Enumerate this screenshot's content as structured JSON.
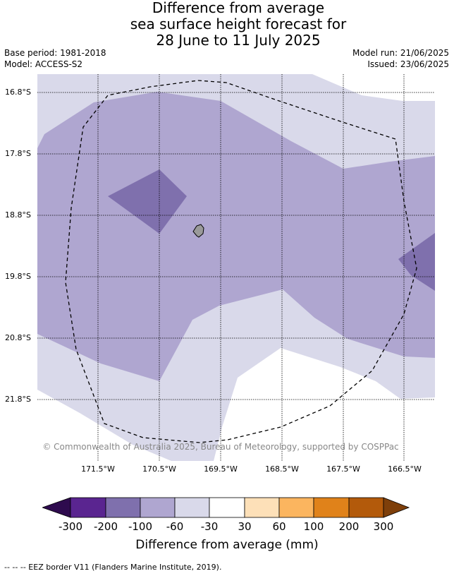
{
  "title": {
    "line1": "Difference from average",
    "line2": "sea surface height forecast for",
    "line3": "28 June to 11 July 2025"
  },
  "meta": {
    "base_period": "Base period: 1981-2018",
    "model": "Model: ACCESS-S2",
    "model_run": "Model run: 21/06/2025",
    "issued": "Issued: 23/06/2025"
  },
  "axes": {
    "latitudes": [
      "16.8°S",
      "17.8°S",
      "18.8°S",
      "19.8°S",
      "20.8°S",
      "21.8°S"
    ],
    "longitudes": [
      "171.5°W",
      "170.5°W",
      "169.5°W",
      "168.5°W",
      "167.5°W",
      "166.5°W"
    ]
  },
  "copyright": "© Commonwealth of Australia 2025, Bureau of Meteorology, supported by COSPPac",
  "colorbar": {
    "ticks": [
      "-300",
      "-200",
      "-100",
      "-60",
      "-30",
      "30",
      "60",
      "100",
      "200",
      "300"
    ],
    "colors": [
      "#2e0b4e",
      "#5a2590",
      "#7f70ad",
      "#afa6d0",
      "#d9d9ea",
      "#ffffff",
      "#fde0b8",
      "#fbb55f",
      "#e0821a",
      "#b35a0b",
      "#7e3f0a"
    ],
    "label": "Difference from average (mm)"
  },
  "legend": {
    "eez": "--  --  -- EEZ border V11 (Flanders Marine Institute, 2019)."
  },
  "colors": {
    "band_light": "#d9d9ea",
    "band_mid": "#afa6d0",
    "band_dark": "#7f70ad",
    "island": "#9a9a9a"
  }
}
